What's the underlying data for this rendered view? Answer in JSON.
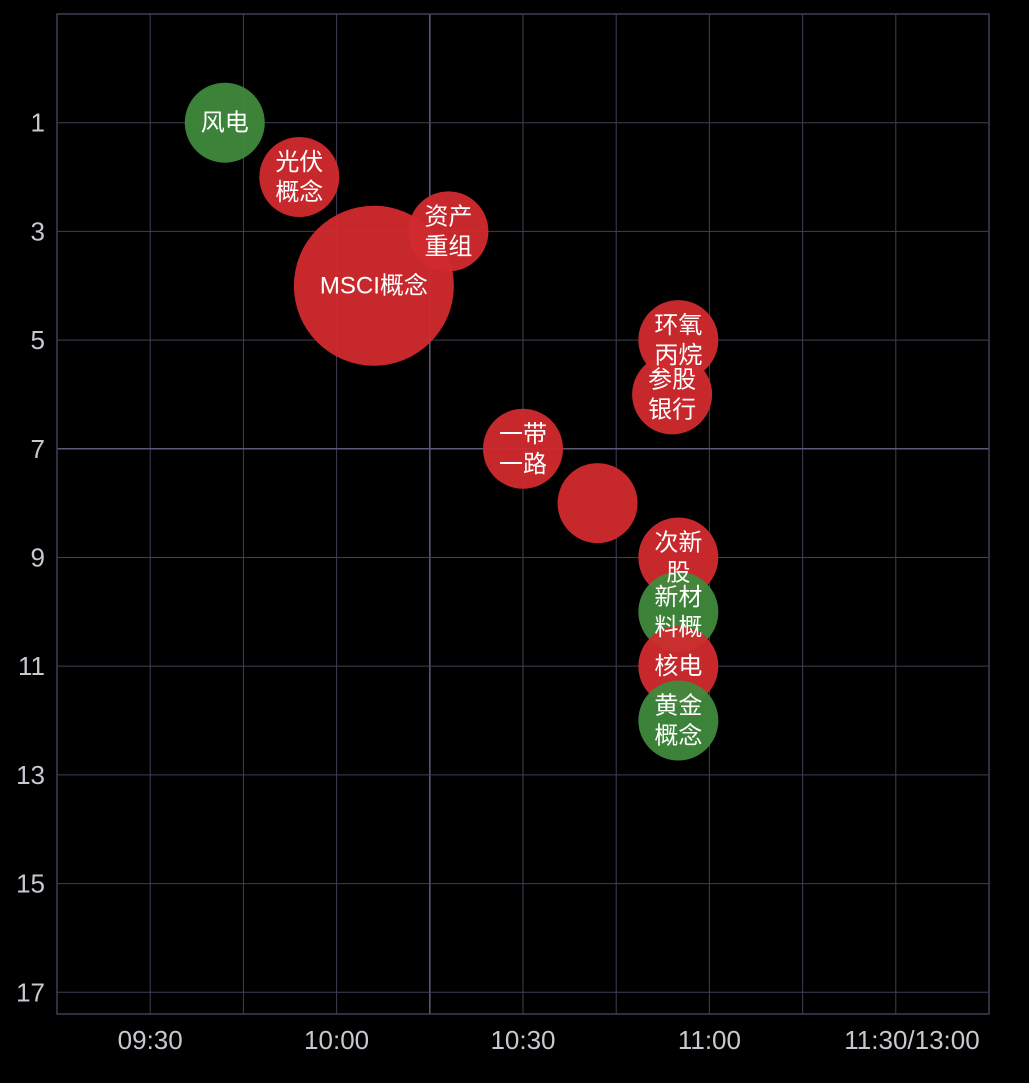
{
  "chart_data": {
    "type": "scatter",
    "style": "bubble",
    "title": "",
    "xlabel": "",
    "ylabel": "",
    "y_reversed": true,
    "grid": true,
    "legend": "none",
    "colors": {
      "background": "#000000",
      "grid": "#3f3f55",
      "grid_major": "#5a5a78",
      "axis_text": "#c8c8d0",
      "rise": "#d22a2e",
      "fall": "#3f8a3c",
      "label": "#ffffff"
    },
    "x_ticks": [
      {
        "value": 0,
        "label": "09:30"
      },
      {
        "value": 30,
        "label": "10:00"
      },
      {
        "value": 60,
        "label": "10:30"
      },
      {
        "value": 90,
        "label": "11:00"
      },
      {
        "value": 120,
        "label": "11:30/13:00"
      }
    ],
    "y_ticks": [
      1,
      3,
      5,
      7,
      9,
      11,
      13,
      15,
      17
    ],
    "xlim": [
      -15,
      135
    ],
    "ylim": [
      -1,
      17.4
    ],
    "points": [
      {
        "name": "风电",
        "label_lines": [
          "风电"
        ],
        "x": 12,
        "y": 1,
        "size": 1.0,
        "trend": "fall"
      },
      {
        "name": "光伏概念",
        "label_lines": [
          "光伏",
          "概念"
        ],
        "x": 24,
        "y": 2,
        "size": 1.0,
        "trend": "rise"
      },
      {
        "name": "资产重组",
        "label_lines": [
          "资产",
          "重组"
        ],
        "x": 48,
        "y": 3,
        "size": 1.0,
        "trend": "rise"
      },
      {
        "name": "MSCI概念",
        "label_lines": [
          "MSCI概念"
        ],
        "x": 36,
        "y": 4,
        "size": 2.0,
        "trend": "rise"
      },
      {
        "name": "环氧丙烷",
        "label_lines": [
          "环氧",
          "丙烷"
        ],
        "x": 85,
        "y": 5,
        "size": 1.0,
        "trend": "rise"
      },
      {
        "name": "参股银行",
        "label_lines": [
          "参股",
          "银行"
        ],
        "x": 84,
        "y": 6,
        "size": 1.0,
        "trend": "rise"
      },
      {
        "name": "一带一路",
        "label_lines": [
          "一带",
          "一路"
        ],
        "x": 60,
        "y": 7,
        "size": 1.0,
        "trend": "rise"
      },
      {
        "name": "",
        "label_lines": [],
        "x": 72,
        "y": 8,
        "size": 1.0,
        "trend": "rise"
      },
      {
        "name": "次新股",
        "label_lines": [
          "次新",
          "股"
        ],
        "x": 85,
        "y": 9,
        "size": 1.0,
        "trend": "rise"
      },
      {
        "name": "新材料概念",
        "label_lines": [
          "新材",
          "料概"
        ],
        "x": 85,
        "y": 10,
        "size": 1.0,
        "trend": "fall"
      },
      {
        "name": "核电",
        "label_lines": [
          "核电"
        ],
        "x": 85,
        "y": 11,
        "size": 1.0,
        "trend": "rise"
      },
      {
        "name": "黄金概念",
        "label_lines": [
          "黄金",
          "概念"
        ],
        "x": 85,
        "y": 12,
        "size": 1.0,
        "trend": "fall"
      }
    ]
  }
}
